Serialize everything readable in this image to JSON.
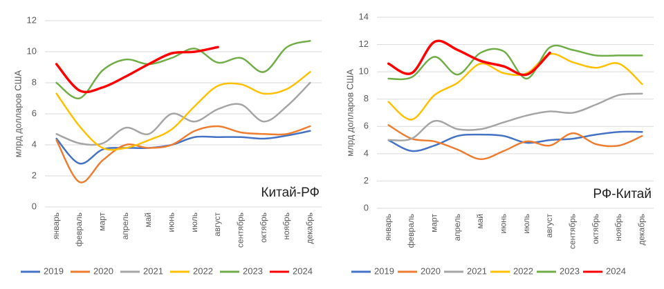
{
  "chart_data": [
    {
      "type": "line",
      "title": "Китай-РФ",
      "y_label": "млрд долларов США",
      "categories": [
        "январь",
        "февраль",
        "март",
        "апрель",
        "май",
        "июнь",
        "июль",
        "август",
        "сентябрь",
        "октябрь",
        "ноябрь",
        "декабрь"
      ],
      "ylim": [
        0,
        12
      ],
      "yticks": [
        0,
        2,
        4,
        6,
        8,
        10,
        12
      ],
      "grid": true,
      "legend": "bottom",
      "series": [
        {
          "name": "2019",
          "color": "#4472c4",
          "values": [
            4.4,
            2.8,
            3.7,
            3.8,
            3.8,
            4.0,
            4.5,
            4.5,
            4.5,
            4.4,
            4.6,
            4.9
          ]
        },
        {
          "name": "2020",
          "color": "#ed7d31",
          "values": [
            4.3,
            1.6,
            3.0,
            4.0,
            3.8,
            4.0,
            4.9,
            5.2,
            4.8,
            4.7,
            4.7,
            5.2
          ]
        },
        {
          "name": "2021",
          "color": "#a5a5a5",
          "values": [
            4.7,
            4.1,
            4.1,
            5.1,
            4.7,
            6.0,
            5.5,
            6.3,
            6.6,
            5.5,
            6.5,
            8.0
          ]
        },
        {
          "name": "2022",
          "color": "#ffc000",
          "values": [
            7.3,
            5.2,
            3.8,
            3.8,
            4.3,
            5.0,
            6.5,
            7.8,
            7.9,
            7.3,
            7.6,
            8.7
          ]
        },
        {
          "name": "2023",
          "color": "#70ad47",
          "values": [
            8.0,
            7.0,
            8.8,
            9.5,
            9.2,
            9.6,
            10.2,
            9.3,
            9.6,
            8.7,
            10.3,
            10.7
          ]
        },
        {
          "name": "2024",
          "color": "#ff0000",
          "values": [
            9.2,
            7.5,
            7.7,
            8.4,
            9.2,
            9.9,
            10.0,
            10.3,
            null,
            null,
            null,
            null
          ]
        }
      ]
    },
    {
      "type": "line",
      "title": "РФ-Китай",
      "y_label": "млрд долларов США",
      "categories": [
        "январь",
        "февраль",
        "март",
        "апрель",
        "май",
        "июнь",
        "июль",
        "август",
        "сентябрь",
        "октябрь",
        "ноябрь",
        "декабрь"
      ],
      "ylim": [
        0,
        14
      ],
      "yticks": [
        0,
        2,
        4,
        6,
        8,
        10,
        12,
        14
      ],
      "grid": true,
      "legend": "bottom",
      "series": [
        {
          "name": "2019",
          "color": "#4472c4",
          "values": [
            5.0,
            4.2,
            4.6,
            5.3,
            5.4,
            5.3,
            4.8,
            5.0,
            5.1,
            5.4,
            5.6,
            5.6
          ]
        },
        {
          "name": "2020",
          "color": "#ed7d31",
          "values": [
            6.1,
            5.1,
            4.9,
            4.3,
            3.6,
            4.2,
            4.9,
            4.6,
            5.5,
            4.7,
            4.6,
            5.3
          ]
        },
        {
          "name": "2021",
          "color": "#a5a5a5",
          "values": [
            5.0,
            5.1,
            6.4,
            5.8,
            5.8,
            6.3,
            6.8,
            7.1,
            7.0,
            7.6,
            8.3,
            8.4
          ]
        },
        {
          "name": "2022",
          "color": "#ffc000",
          "values": [
            7.8,
            6.5,
            8.3,
            9.2,
            10.6,
            9.9,
            9.9,
            11.3,
            10.7,
            10.3,
            10.6,
            9.1
          ]
        },
        {
          "name": "2023",
          "color": "#70ad47",
          "values": [
            9.5,
            9.6,
            11.1,
            9.8,
            11.4,
            11.5,
            9.5,
            11.8,
            11.6,
            11.2,
            11.2,
            11.2
          ]
        },
        {
          "name": "2024",
          "color": "#ff0000",
          "values": [
            10.6,
            9.9,
            12.2,
            11.6,
            10.8,
            10.4,
            9.8,
            11.4,
            null,
            null,
            null,
            null
          ]
        }
      ]
    }
  ]
}
